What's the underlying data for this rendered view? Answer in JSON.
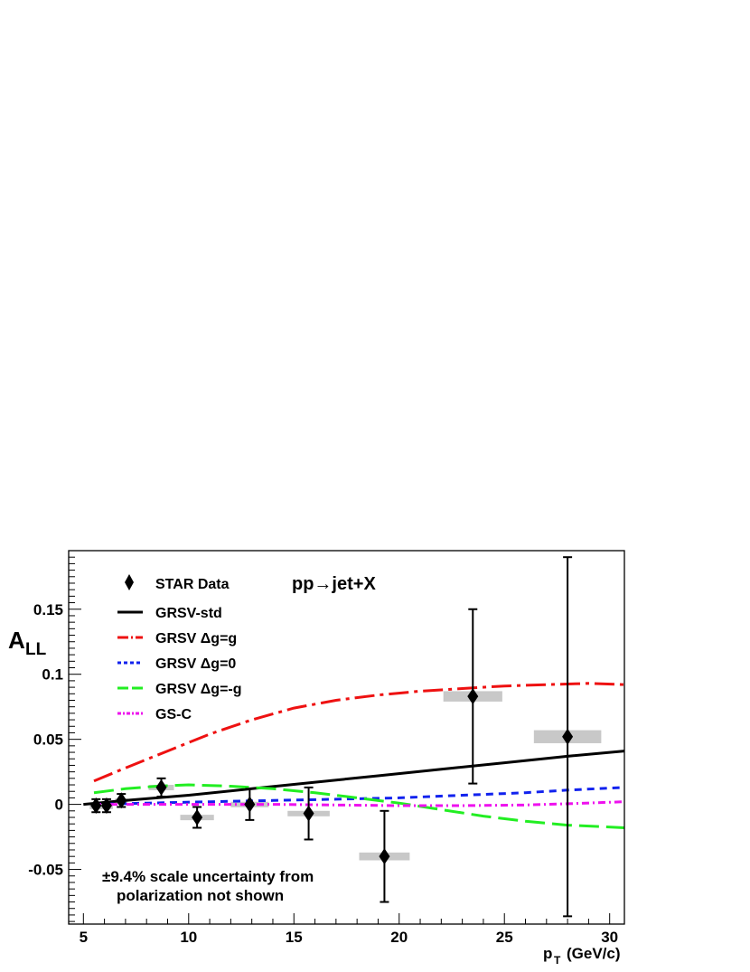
{
  "chart_data": {
    "type": "scatter",
    "xlabel": "p",
    "xlabel_sub": "T",
    "xlabel_unit": "(GeV/c)",
    "ylabel": "A",
    "ylabel_sub": "LL",
    "process_label": "pp→jet+X",
    "xlim": [
      4.3,
      30.7
    ],
    "ylim": [
      -0.092,
      0.195
    ],
    "x_ticks": [
      {
        "value": 5,
        "label": "5"
      },
      {
        "value": 10,
        "label": "10"
      },
      {
        "value": 15,
        "label": "15"
      },
      {
        "value": 20,
        "label": "20"
      },
      {
        "value": 25,
        "label": "25"
      },
      {
        "value": 30,
        "label": "30"
      }
    ],
    "y_ticks": [
      {
        "value": -0.05,
        "label": "-0.05"
      },
      {
        "value": 0,
        "label": "0"
      },
      {
        "value": 0.05,
        "label": "0.05"
      },
      {
        "value": 0.1,
        "label": "0.1"
      },
      {
        "value": 0.15,
        "label": "0.15"
      }
    ],
    "grid": false,
    "legend_position": "top-left",
    "annotation_lines": [
      "±9.4% scale uncertainty from",
      "polarization not shown"
    ],
    "data_series": {
      "name": "STAR Data",
      "color": "#000000",
      "points": [
        {
          "x": 5.6,
          "y": -0.001,
          "err": 0.005,
          "sys_half_width": 0.3,
          "sys": 0.0015
        },
        {
          "x": 6.1,
          "y": -0.001,
          "err": 0.005,
          "sys_half_width": 0.3,
          "sys": 0.0015
        },
        {
          "x": 6.8,
          "y": 0.003,
          "err": 0.005,
          "sys_half_width": 0.3,
          "sys": 0.0015
        },
        {
          "x": 8.7,
          "y": 0.013,
          "err": 0.007,
          "sys_half_width": 0.6,
          "sys": 0.002
        },
        {
          "x": 10.4,
          "y": -0.01,
          "err": 0.008,
          "sys_half_width": 0.8,
          "sys": 0.002
        },
        {
          "x": 12.9,
          "y": 0.0,
          "err": 0.012,
          "sys_half_width": 0.9,
          "sys": 0.002
        },
        {
          "x": 15.7,
          "y": -0.007,
          "err": 0.02,
          "sys_half_width": 1.0,
          "sys": 0.002
        },
        {
          "x": 19.3,
          "y": -0.04,
          "err": 0.035,
          "sys_half_width": 1.2,
          "sys": 0.003
        },
        {
          "x": 23.5,
          "y": 0.083,
          "err": 0.067,
          "sys_half_width": 1.4,
          "sys": 0.004
        },
        {
          "x": 28.0,
          "y": 0.052,
          "err": 0.138,
          "sys_half_width": 1.6,
          "sys": 0.005
        }
      ]
    },
    "sys_color": "#c8c8c8",
    "series": [
      {
        "name": "GRSV-std",
        "color": "#000000",
        "dash": "",
        "x": [
          5,
          7,
          10,
          13,
          16,
          19,
          22,
          25,
          28,
          30.7
        ],
        "y": [
          0.0,
          0.003,
          0.007,
          0.012,
          0.017,
          0.022,
          0.027,
          0.032,
          0.037,
          0.041
        ]
      },
      {
        "name": "GRSV Δg=g",
        "color": "#ee1111",
        "dash": "22,6,4,6",
        "x": [
          5.5,
          7,
          9,
          11,
          13,
          15,
          17,
          19,
          21,
          23,
          25,
          27,
          29,
          30.7
        ],
        "y": [
          0.018,
          0.028,
          0.041,
          0.054,
          0.065,
          0.074,
          0.08,
          0.084,
          0.087,
          0.089,
          0.091,
          0.092,
          0.093,
          0.092
        ]
      },
      {
        "name": "GRSV Δg=0",
        "color": "#1122ee",
        "dash": "8,6",
        "x": [
          5.5,
          8,
          11,
          14,
          17,
          20,
          23,
          26,
          28,
          30.7
        ],
        "y": [
          0.0,
          0.001,
          0.002,
          0.003,
          0.004,
          0.005,
          0.007,
          0.009,
          0.011,
          0.013
        ]
      },
      {
        "name": "GRSV Δg=-g",
        "color": "#22ee22",
        "dash": "22,8",
        "x": [
          5.5,
          7,
          8.5,
          10,
          12,
          14,
          16,
          18,
          20,
          22,
          24,
          26,
          28,
          29.5,
          30.7
        ],
        "y": [
          0.009,
          0.012,
          0.014,
          0.015,
          0.014,
          0.012,
          0.009,
          0.005,
          0.001,
          -0.004,
          -0.009,
          -0.013,
          -0.016,
          -0.017,
          -0.018
        ]
      },
      {
        "name": "GS-C",
        "color": "#ee11ee",
        "dash": "8,4,2,4",
        "x": [
          5.5,
          8,
          11,
          14,
          17,
          20,
          23,
          26,
          28,
          30.7
        ],
        "y": [
          0.0,
          0.0,
          0.0,
          0.0,
          -0.0005,
          -0.001,
          -0.001,
          -0.0005,
          0.0005,
          0.002
        ]
      }
    ]
  }
}
